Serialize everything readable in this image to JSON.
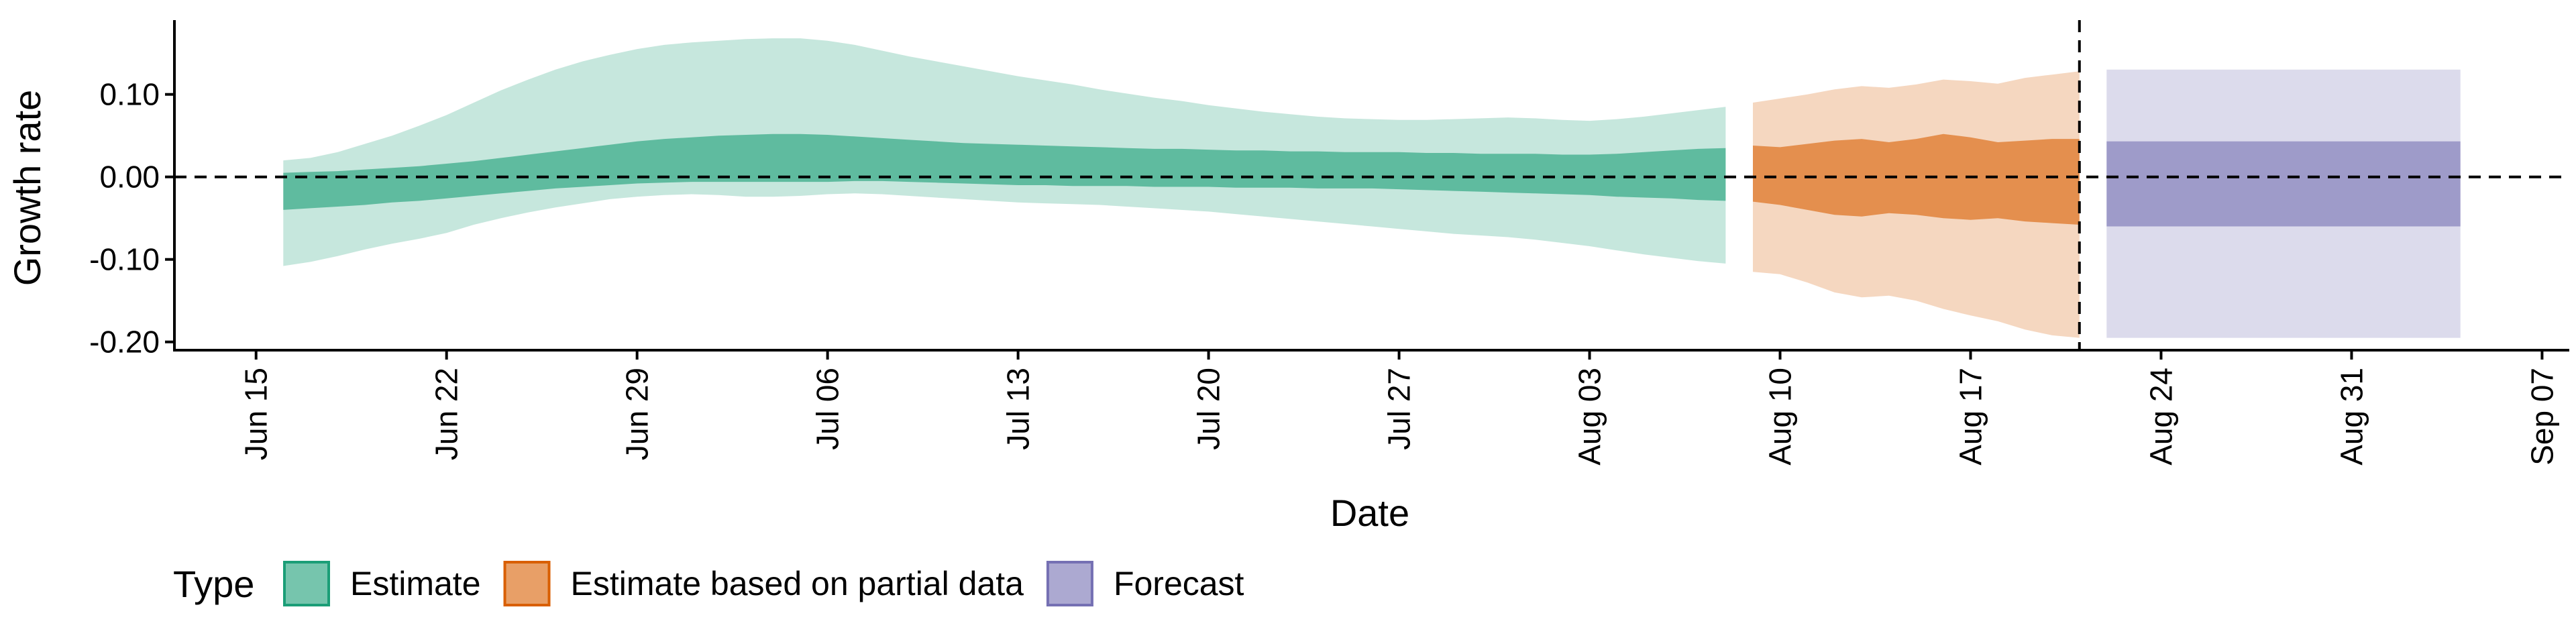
{
  "chart_data": {
    "type": "area",
    "title": "",
    "xlabel": "Date",
    "ylabel": "Growth rate",
    "x_ticks": [
      "Jun 15",
      "Jun 22",
      "Jun 29",
      "Jul 06",
      "Jul 13",
      "Jul 20",
      "Jul 27",
      "Aug 03",
      "Aug 10",
      "Aug 17",
      "Aug 24",
      "Aug 31",
      "Sep 07"
    ],
    "y_ticks": [
      "0.10",
      "0.00",
      "-0.10",
      "-0.20"
    ],
    "ylim": [
      -0.21,
      0.19
    ],
    "xlim": [
      "2020-06-12",
      "2020-09-08"
    ],
    "reference_line": {
      "y": 0.0,
      "style": "dashed"
    },
    "forecast_start_line": {
      "x": "2020-08-21",
      "style": "dashed"
    },
    "grid": false,
    "legend": {
      "title": "Type",
      "position": "bottom-left",
      "entries": [
        "Estimate",
        "Estimate based on partial data",
        "Forecast"
      ]
    },
    "series": [
      {
        "name": "Estimate",
        "color": "#1b9e77",
        "x": [
          "2020-06-16",
          "2020-06-17",
          "2020-06-18",
          "2020-06-19",
          "2020-06-20",
          "2020-06-21",
          "2020-06-22",
          "2020-06-23",
          "2020-06-24",
          "2020-06-25",
          "2020-06-26",
          "2020-06-27",
          "2020-06-28",
          "2020-06-29",
          "2020-06-30",
          "2020-07-01",
          "2020-07-02",
          "2020-07-03",
          "2020-07-04",
          "2020-07-05",
          "2020-07-06",
          "2020-07-07",
          "2020-07-08",
          "2020-07-09",
          "2020-07-10",
          "2020-07-11",
          "2020-07-12",
          "2020-07-13",
          "2020-07-14",
          "2020-07-15",
          "2020-07-16",
          "2020-07-17",
          "2020-07-18",
          "2020-07-19",
          "2020-07-20",
          "2020-07-21",
          "2020-07-22",
          "2020-07-23",
          "2020-07-24",
          "2020-07-25",
          "2020-07-26",
          "2020-07-27",
          "2020-07-28",
          "2020-07-29",
          "2020-07-30",
          "2020-07-31",
          "2020-08-01",
          "2020-08-02",
          "2020-08-03",
          "2020-08-04",
          "2020-08-05",
          "2020-08-06",
          "2020-08-07",
          "2020-08-08"
        ],
        "lower_90": [
          -0.108,
          -0.103,
          -0.096,
          -0.088,
          -0.081,
          -0.075,
          -0.068,
          -0.058,
          -0.05,
          -0.043,
          -0.037,
          -0.032,
          -0.027,
          -0.024,
          -0.022,
          -0.021,
          -0.022,
          -0.024,
          -0.024,
          -0.023,
          -0.021,
          -0.02,
          -0.021,
          -0.023,
          -0.025,
          -0.027,
          -0.029,
          -0.031,
          -0.032,
          -0.033,
          -0.034,
          -0.036,
          -0.038,
          -0.04,
          -0.042,
          -0.045,
          -0.048,
          -0.051,
          -0.054,
          -0.057,
          -0.06,
          -0.063,
          -0.066,
          -0.069,
          -0.071,
          -0.073,
          -0.076,
          -0.08,
          -0.084,
          -0.089,
          -0.094,
          -0.098,
          -0.102,
          -0.105
        ],
        "upper_90": [
          0.02,
          0.023,
          0.03,
          0.04,
          0.05,
          0.062,
          0.075,
          0.09,
          0.105,
          0.118,
          0.13,
          0.14,
          0.148,
          0.155,
          0.16,
          0.163,
          0.165,
          0.167,
          0.168,
          0.168,
          0.165,
          0.16,
          0.153,
          0.146,
          0.14,
          0.134,
          0.128,
          0.122,
          0.117,
          0.112,
          0.106,
          0.101,
          0.096,
          0.092,
          0.087,
          0.083,
          0.079,
          0.076,
          0.073,
          0.071,
          0.07,
          0.069,
          0.069,
          0.07,
          0.071,
          0.072,
          0.071,
          0.069,
          0.068,
          0.07,
          0.073,
          0.077,
          0.081,
          0.085
        ],
        "lower_50": [
          -0.04,
          -0.038,
          -0.036,
          -0.034,
          -0.031,
          -0.029,
          -0.026,
          -0.023,
          -0.02,
          -0.017,
          -0.014,
          -0.012,
          -0.01,
          -0.008,
          -0.007,
          -0.006,
          -0.006,
          -0.006,
          -0.006,
          -0.006,
          -0.006,
          -0.005,
          -0.005,
          -0.006,
          -0.007,
          -0.008,
          -0.009,
          -0.01,
          -0.01,
          -0.011,
          -0.011,
          -0.011,
          -0.012,
          -0.012,
          -0.012,
          -0.013,
          -0.013,
          -0.013,
          -0.014,
          -0.014,
          -0.014,
          -0.015,
          -0.016,
          -0.017,
          -0.018,
          -0.019,
          -0.02,
          -0.021,
          -0.022,
          -0.024,
          -0.025,
          -0.026,
          -0.028,
          -0.029
        ],
        "upper_50": [
          0.005,
          0.006,
          0.007,
          0.009,
          0.011,
          0.013,
          0.016,
          0.019,
          0.023,
          0.027,
          0.031,
          0.035,
          0.039,
          0.043,
          0.046,
          0.048,
          0.05,
          0.051,
          0.052,
          0.052,
          0.051,
          0.049,
          0.047,
          0.045,
          0.043,
          0.041,
          0.04,
          0.039,
          0.038,
          0.037,
          0.036,
          0.035,
          0.034,
          0.034,
          0.033,
          0.032,
          0.032,
          0.031,
          0.031,
          0.03,
          0.03,
          0.03,
          0.029,
          0.029,
          0.028,
          0.028,
          0.028,
          0.027,
          0.027,
          0.028,
          0.03,
          0.032,
          0.034,
          0.035
        ]
      },
      {
        "name": "Estimate based on partial data",
        "color": "#d95f02",
        "x": [
          "2020-08-09",
          "2020-08-10",
          "2020-08-11",
          "2020-08-12",
          "2020-08-13",
          "2020-08-14",
          "2020-08-15",
          "2020-08-16",
          "2020-08-17",
          "2020-08-18",
          "2020-08-19",
          "2020-08-20",
          "2020-08-21"
        ],
        "lower_90": [
          -0.115,
          -0.118,
          -0.128,
          -0.14,
          -0.146,
          -0.144,
          -0.15,
          -0.16,
          -0.168,
          -0.175,
          -0.185,
          -0.192,
          -0.195
        ],
        "upper_90": [
          0.09,
          0.095,
          0.1,
          0.106,
          0.11,
          0.108,
          0.112,
          0.118,
          0.116,
          0.113,
          0.12,
          0.124,
          0.128
        ],
        "lower_50": [
          -0.03,
          -0.034,
          -0.04,
          -0.046,
          -0.048,
          -0.044,
          -0.046,
          -0.05,
          -0.052,
          -0.05,
          -0.054,
          -0.056,
          -0.058
        ],
        "upper_50": [
          0.038,
          0.036,
          0.04,
          0.044,
          0.046,
          0.042,
          0.046,
          0.052,
          0.048,
          0.042,
          0.044,
          0.046,
          0.046
        ]
      },
      {
        "name": "Forecast",
        "color": "#7570b3",
        "x": [
          "2020-08-22",
          "2020-09-04"
        ],
        "lower_90": [
          -0.195,
          -0.195
        ],
        "upper_90": [
          0.13,
          0.13
        ],
        "lower_50": [
          -0.06,
          -0.06
        ],
        "upper_50": [
          0.043,
          0.043
        ]
      }
    ]
  }
}
